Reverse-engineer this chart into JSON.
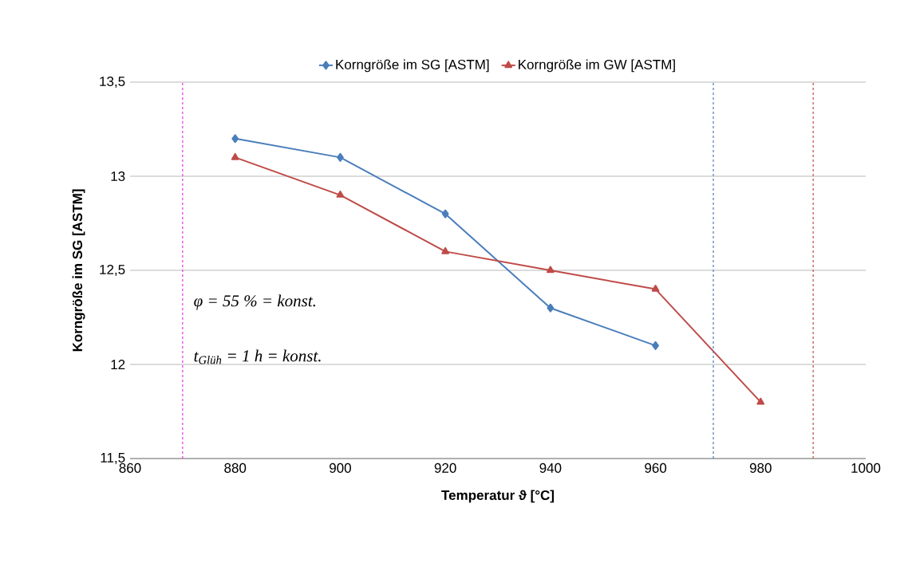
{
  "chart_data": {
    "type": "line",
    "xlabel": "Temperatur ϑ [°C]",
    "ylabel": "Korngröße im SG [ASTM]",
    "series": [
      {
        "name": "Korngröße im SG [ASTM]",
        "color": "#4a7ebb",
        "marker": "diamond",
        "x": [
          880,
          900,
          920,
          940,
          960
        ],
        "values": [
          13.2,
          13.1,
          12.8,
          12.3,
          12.1
        ]
      },
      {
        "name": "Korngröße im GW [ASTM]",
        "color": "#be4b48",
        "marker": "triangle",
        "x": [
          880,
          900,
          920,
          940,
          960,
          980
        ],
        "values": [
          13.1,
          12.9,
          12.6,
          12.5,
          12.4,
          11.8
        ]
      }
    ],
    "xlim": [
      860,
      1000
    ],
    "xticks": [
      860,
      880,
      900,
      920,
      940,
      960,
      980,
      1000
    ],
    "ylim": [
      11.5,
      13.5
    ],
    "yticks": [
      {
        "value": 11.5,
        "label": "11,5"
      },
      12,
      {
        "value": 12.5,
        "label": "12,5"
      },
      13,
      {
        "value": 13.5,
        "label": "13,5"
      }
    ],
    "grid": "y",
    "legend": "top",
    "line_style": "solid",
    "ref_lines": [
      {
        "axis": "x",
        "value": 870,
        "color": "#e633e6",
        "line_style": "dashed"
      },
      {
        "axis": "x",
        "value": 971,
        "color": "#4a7ebb",
        "line_style": "dashed"
      },
      {
        "axis": "x",
        "value": 990,
        "color": "#be4b48",
        "line_style": "dashed"
      }
    ],
    "annotations": [
      "φ = 55 % = konst.",
      "t$_{Glüh}$ = 1 h = konst."
    ]
  }
}
